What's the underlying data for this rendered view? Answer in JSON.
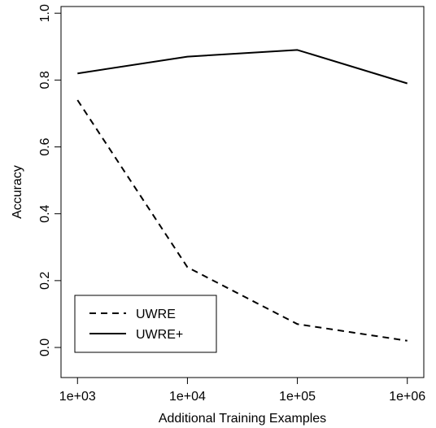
{
  "chart_data": {
    "type": "line",
    "xlabel": "Additional Training Examples",
    "ylabel": "Accuracy",
    "x_scale": "log",
    "x": [
      1000,
      10000,
      100000,
      1000000
    ],
    "x_tick_labels": [
      "1e+03",
      "1e+04",
      "1e+05",
      "1e+06"
    ],
    "y_ticks": [
      0.0,
      0.2,
      0.4,
      0.6,
      0.8,
      1.0
    ],
    "y_tick_labels": [
      "0.0",
      "0.2",
      "0.4",
      "0.6",
      "0.8",
      "1.0"
    ],
    "ylim": [
      -0.09,
      1.02
    ],
    "xlim_log10": [
      2.85,
      6.15
    ],
    "grid": false,
    "legend_position": "bottom-left",
    "series": [
      {
        "name": "UWRE",
        "style": "dashed",
        "color": "#000000",
        "values": [
          0.74,
          0.24,
          0.07,
          0.02
        ]
      },
      {
        "name": "UWRE+",
        "style": "solid",
        "color": "#000000",
        "values": [
          0.82,
          0.87,
          0.89,
          0.79
        ]
      }
    ]
  }
}
